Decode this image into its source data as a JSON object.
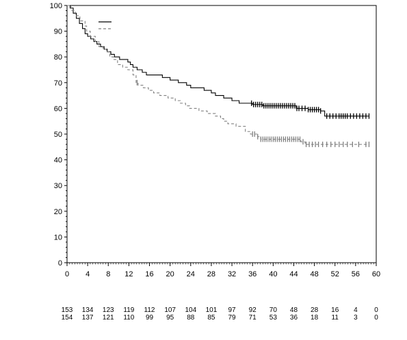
{
  "chart_data": {
    "type": "line",
    "title": "",
    "xlabel": "",
    "ylabel": "",
    "xlim": [
      0,
      60
    ],
    "ylim": [
      0,
      100
    ],
    "x_ticks": [
      0,
      4,
      8,
      12,
      16,
      20,
      24,
      28,
      32,
      36,
      40,
      44,
      48,
      52,
      56,
      60
    ],
    "x_tick_labels": [
      "0",
      "4",
      "8",
      "12",
      "16",
      "20",
      "24",
      "28",
      "32",
      "36",
      "40",
      "44",
      "48",
      "52",
      "56",
      "60"
    ],
    "y_ticks": [
      0,
      10,
      20,
      30,
      40,
      50,
      60,
      70,
      80,
      90,
      100
    ],
    "y_tick_labels": [
      "0",
      "10",
      "20",
      "30",
      "40",
      "50",
      "60",
      "70",
      "80",
      "90",
      "100"
    ],
    "grid": false,
    "legend": {
      "placement": "top-left",
      "labels_visible": false
    },
    "series": [
      {
        "style": "solid",
        "color": "#000000",
        "steps": [
          [
            0,
            100
          ],
          [
            0.6,
            99
          ],
          [
            1.2,
            97
          ],
          [
            1.8,
            95
          ],
          [
            2.4,
            93
          ],
          [
            3.0,
            91
          ],
          [
            3.5,
            89
          ],
          [
            4.0,
            88
          ],
          [
            4.6,
            87
          ],
          [
            5.2,
            86
          ],
          [
            5.8,
            85
          ],
          [
            6.5,
            84
          ],
          [
            7.2,
            83
          ],
          [
            7.8,
            82
          ],
          [
            8.5,
            81
          ],
          [
            9.2,
            80
          ],
          [
            10.2,
            79
          ],
          [
            11.8,
            78
          ],
          [
            12.3,
            77
          ],
          [
            12.8,
            76
          ],
          [
            13.6,
            75
          ],
          [
            14.6,
            74
          ],
          [
            15.4,
            73
          ],
          [
            17.2,
            73
          ],
          [
            18.5,
            72
          ],
          [
            20.0,
            71
          ],
          [
            21.6,
            70
          ],
          [
            23.2,
            69
          ],
          [
            24.0,
            68
          ],
          [
            26.6,
            67
          ],
          [
            28.0,
            66
          ],
          [
            28.8,
            65
          ],
          [
            30.4,
            64
          ],
          [
            32.0,
            63
          ],
          [
            33.4,
            62
          ],
          [
            36.0,
            61.5
          ],
          [
            38.0,
            61
          ],
          [
            44.5,
            60
          ],
          [
            46.8,
            59.5
          ],
          [
            49.2,
            59
          ],
          [
            50.0,
            57
          ],
          [
            58.5,
            57
          ]
        ],
        "censor_ticks": [
          35.8,
          36.2,
          36.6,
          37.0,
          37.4,
          37.8,
          38.2,
          38.6,
          39.0,
          39.4,
          39.8,
          40.2,
          40.6,
          41.0,
          41.4,
          41.8,
          42.2,
          42.6,
          43.0,
          43.4,
          43.8,
          44.2,
          44.6,
          45.0,
          45.6,
          46.2,
          46.8,
          47.2,
          47.6,
          48.0,
          48.4,
          48.8,
          49.2,
          50.4,
          51.0,
          51.6,
          52.2,
          52.8,
          53.2,
          53.6,
          54.0,
          54.4,
          55.0,
          55.6,
          56.2,
          56.8,
          57.4,
          58.0,
          58.6
        ]
      },
      {
        "style": "dashed",
        "color": "#808080",
        "steps": [
          [
            0,
            100
          ],
          [
            0.8,
            98
          ],
          [
            1.6,
            96
          ],
          [
            2.5,
            94
          ],
          [
            3.5,
            92
          ],
          [
            3.8,
            90
          ],
          [
            4.5,
            88
          ],
          [
            5.5,
            86
          ],
          [
            6.2,
            84
          ],
          [
            7.0,
            83
          ],
          [
            7.6,
            82
          ],
          [
            8.3,
            80
          ],
          [
            9.0,
            79
          ],
          [
            9.8,
            77
          ],
          [
            10.8,
            76
          ],
          [
            11.8,
            75
          ],
          [
            12.8,
            73
          ],
          [
            13.4,
            70
          ],
          [
            13.8,
            69
          ],
          [
            14.8,
            68
          ],
          [
            15.8,
            67
          ],
          [
            16.8,
            66
          ],
          [
            18.0,
            65
          ],
          [
            19.6,
            64
          ],
          [
            21.0,
            63
          ],
          [
            22.0,
            62
          ],
          [
            23.0,
            61
          ],
          [
            23.8,
            60
          ],
          [
            25.6,
            59
          ],
          [
            27.2,
            58
          ],
          [
            28.8,
            57
          ],
          [
            29.8,
            56
          ],
          [
            30.4,
            55
          ],
          [
            31.2,
            54
          ],
          [
            32.8,
            53
          ],
          [
            34.6,
            51
          ],
          [
            35.6,
            50
          ],
          [
            37.0,
            49
          ],
          [
            37.6,
            48
          ],
          [
            45.4,
            47
          ],
          [
            46.2,
            46
          ],
          [
            58.5,
            46
          ]
        ],
        "censor_ticks": [
          13.6,
          36.0,
          36.4,
          37.0,
          37.6,
          38.0,
          38.4,
          38.8,
          39.2,
          39.6,
          40.0,
          40.4,
          40.8,
          41.2,
          41.6,
          42.0,
          42.4,
          42.8,
          43.2,
          43.6,
          44.0,
          44.4,
          44.8,
          45.2,
          45.8,
          46.4,
          47.0,
          47.6,
          48.2,
          48.8,
          49.6,
          50.4,
          51.2,
          52.0,
          52.8,
          53.6,
          54.4,
          55.4,
          56.6,
          58.0,
          58.6
        ]
      }
    ],
    "risk_table": {
      "times": [
        0,
        4,
        8,
        12,
        16,
        20,
        24,
        28,
        32,
        36,
        40,
        44,
        48,
        52,
        56,
        60
      ],
      "rows": [
        [
          "153",
          "134",
          "123",
          "119",
          "112",
          "107",
          "104",
          "101",
          "97",
          "92",
          "70",
          "48",
          "28",
          "16",
          "4",
          "0"
        ],
        [
          "154",
          "137",
          "121",
          "110",
          "99",
          "95",
          "88",
          "85",
          "79",
          "71",
          "53",
          "36",
          "18",
          "11",
          "3",
          "0"
        ]
      ]
    }
  }
}
